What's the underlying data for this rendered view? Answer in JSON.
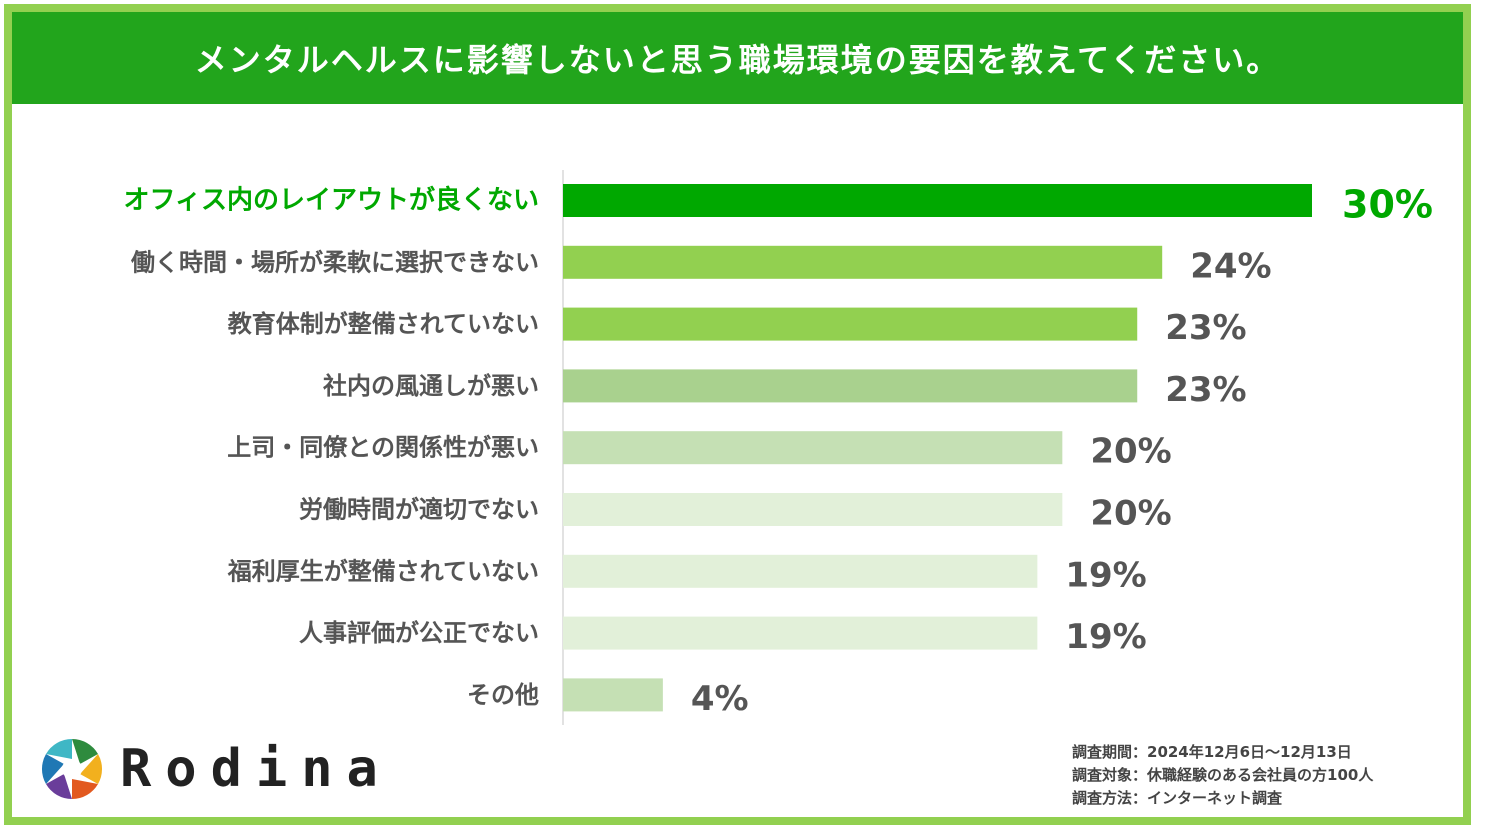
{
  "header": {
    "title": "メンタルヘルスに影響しないと思う職場環境の要因を教えてください。"
  },
  "chart_data": {
    "type": "bar",
    "orientation": "horizontal",
    "title": "メンタルヘルスに影響しないと思う職場環境の要因を教えてください。",
    "categories": [
      "オフィス内のレイアウトが良くない",
      "働く時間・場所が柔軟に選択できない",
      "教育体制が整備されていない",
      "社内の風通しが悪い",
      "上司・同僚との関係性が悪い",
      "労働時間が適切でない",
      "福利厚生が整備されていない",
      "人事評価が公正でない",
      "その他"
    ],
    "values": [
      30,
      24,
      23,
      23,
      20,
      20,
      19,
      19,
      4
    ],
    "value_labels": [
      "30%",
      "24%",
      "23%",
      "23%",
      "20%",
      "20%",
      "19%",
      "19%",
      "4%"
    ],
    "bar_colors": [
      "#00a800",
      "#92d050",
      "#92d050",
      "#a9d18e",
      "#c5e0b4",
      "#e2f0d9",
      "#e2f0d9",
      "#e2f0d9",
      "#c5e0b4"
    ],
    "highlight_color": "#00a800",
    "label_color": "#555555",
    "xlim": [
      0,
      30
    ],
    "grid": false,
    "legend": "none"
  },
  "logo": {
    "text": "Rodina",
    "icon": "aperture-logo-icon"
  },
  "footnote": {
    "lines": [
      "調査期間：2024年12月6日〜12月13日",
      "調査対象：休職経験のある会社員の方100人",
      "調査方法：インターネット調査"
    ]
  }
}
